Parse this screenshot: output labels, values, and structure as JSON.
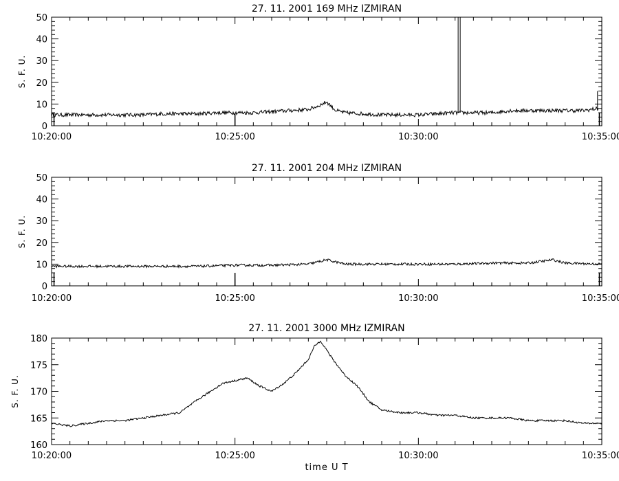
{
  "chart_data": [
    {
      "type": "line",
      "title": "27.  11.  2001    169  MHz    IZMIRAN",
      "ylabel": "S. F. U.",
      "xlabel": "",
      "x_range": [
        "10:20:00",
        "10:35:00"
      ],
      "x_ticks": [
        "10:20:00",
        "10:25:00",
        "10:30:00",
        "10:35:00"
      ],
      "ylim": [
        0,
        50
      ],
      "y_ticks": [
        0,
        10,
        20,
        30,
        40,
        50
      ],
      "grid": false,
      "series": [
        {
          "x": [
            "10:20:00",
            "10:20:30",
            "10:21:00",
            "10:21:30",
            "10:22:00",
            "10:22:30",
            "10:23:00",
            "10:23:30",
            "10:24:00",
            "10:24:30",
            "10:25:00",
            "10:25:30",
            "10:26:00",
            "10:26:30",
            "10:27:00",
            "10:27:15",
            "10:27:30",
            "10:27:45",
            "10:28:00",
            "10:28:30",
            "10:29:00",
            "10:29:30",
            "10:30:00",
            "10:30:30",
            "10:31:00",
            "10:31:30",
            "10:32:00",
            "10:32:30",
            "10:33:00",
            "10:33:30",
            "10:34:00",
            "10:34:30",
            "10:34:55"
          ],
          "values": [
            5,
            5,
            5,
            5,
            5,
            5,
            5.5,
            5.5,
            5.5,
            6,
            6,
            6,
            6.5,
            7,
            7.5,
            9,
            11,
            7,
            6,
            5.5,
            5,
            5,
            5,
            5.5,
            6,
            6,
            6,
            7,
            7,
            7,
            7,
            7,
            8
          ]
        }
      ],
      "annotations": [
        {
          "x": "10:31:05",
          "text": ""
        }
      ]
    },
    {
      "type": "line",
      "title": "27.  11.  2001    204  MHz    IZMIRAN",
      "ylabel": "S. F. U.",
      "xlabel": "",
      "x_range": [
        "10:20:00",
        "10:35:00"
      ],
      "x_ticks": [
        "10:20:00",
        "10:25:00",
        "10:30:00",
        "10:35:00"
      ],
      "ylim": [
        0,
        50
      ],
      "y_ticks": [
        0,
        10,
        20,
        30,
        40,
        50
      ],
      "grid": false,
      "series": [
        {
          "x": [
            "10:20:00",
            "10:21:00",
            "10:22:00",
            "10:23:00",
            "10:24:00",
            "10:25:00",
            "10:26:00",
            "10:27:00",
            "10:27:30",
            "10:28:00",
            "10:29:00",
            "10:30:00",
            "10:31:00",
            "10:32:00",
            "10:33:00",
            "10:33:40",
            "10:34:00",
            "10:35:00"
          ],
          "values": [
            9,
            9,
            9,
            9,
            9,
            9.5,
            9.5,
            10,
            12,
            10,
            10,
            10,
            10,
            10.5,
            10.5,
            12,
            10.5,
            10
          ]
        }
      ]
    },
    {
      "type": "line",
      "title": "27.  11.  2001    3000  MHz    IZMIRAN",
      "ylabel": "S. F. U.",
      "xlabel": "time   U  T",
      "x_range": [
        "10:20:00",
        "10:35:00"
      ],
      "x_ticks": [
        "10:20:00",
        "10:25:00",
        "10:30:00",
        "10:35:00"
      ],
      "ylim": [
        160,
        180
      ],
      "y_ticks": [
        160,
        165,
        170,
        175,
        180
      ],
      "grid": false,
      "series": [
        {
          "x": [
            "10:20:00",
            "10:20:30",
            "10:21:00",
            "10:21:30",
            "10:22:00",
            "10:22:30",
            "10:23:00",
            "10:23:30",
            "10:24:00",
            "10:24:20",
            "10:24:40",
            "10:25:00",
            "10:25:20",
            "10:25:40",
            "10:26:00",
            "10:26:20",
            "10:26:40",
            "10:27:00",
            "10:27:10",
            "10:27:20",
            "10:27:40",
            "10:28:00",
            "10:28:20",
            "10:28:40",
            "10:29:00",
            "10:29:30",
            "10:30:00",
            "10:30:30",
            "10:31:00",
            "10:31:30",
            "10:32:00",
            "10:32:30",
            "10:33:00",
            "10:33:30",
            "10:34:00",
            "10:34:30",
            "10:35:00"
          ],
          "values": [
            164,
            163.5,
            164,
            164.5,
            164.5,
            165,
            165.5,
            166,
            168.5,
            170,
            171.5,
            172,
            172.5,
            171,
            170,
            171.5,
            173.5,
            176,
            178.5,
            179.5,
            176,
            173,
            171,
            168,
            166.5,
            166,
            166,
            165.5,
            165.5,
            165,
            165,
            165,
            164.5,
            164.5,
            164.5,
            164,
            164
          ]
        }
      ]
    }
  ]
}
